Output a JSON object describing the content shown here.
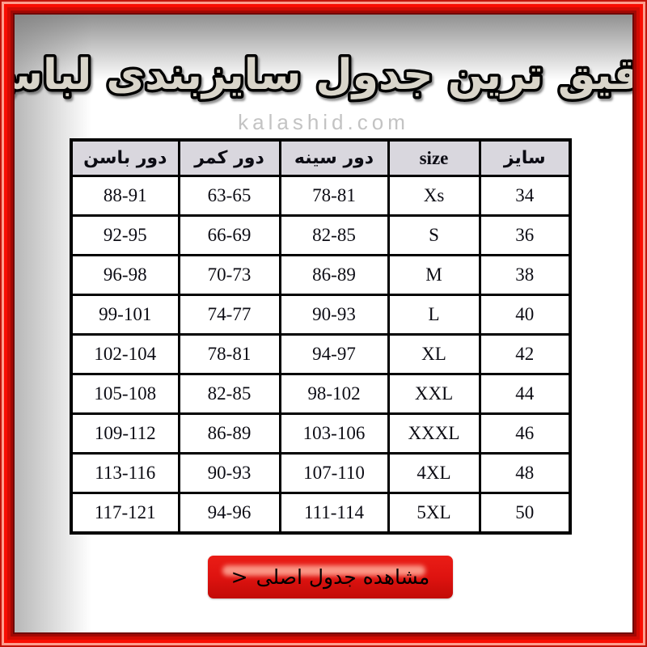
{
  "title": {
    "text": "دقیق ترین جدول سایزبندی لباس"
  },
  "watermark": {
    "text": "kalashid.com"
  },
  "size_table": {
    "headers": [
      "دور باسن",
      "دور کمر",
      "دور سینه",
      "size",
      "سایز"
    ],
    "rows": [
      [
        "88-91",
        "63-65",
        "78-81",
        "Xs",
        "34"
      ],
      [
        "92-95",
        "66-69",
        "82-85",
        "S",
        "36"
      ],
      [
        "96-98",
        "70-73",
        "86-89",
        "M",
        "38"
      ],
      [
        "99-101",
        "74-77",
        "90-93",
        "L",
        "40"
      ],
      [
        "102-104",
        "78-81",
        "94-97",
        "XL",
        "42"
      ],
      [
        "105-108",
        "82-85",
        "98-102",
        "XXL",
        "44"
      ],
      [
        "109-112",
        "86-89",
        "103-106",
        "XXXL",
        "46"
      ],
      [
        "113-116",
        "90-93",
        "107-110",
        "4XL",
        "48"
      ],
      [
        "117-121",
        "94-96",
        "111-114",
        "5XL",
        "50"
      ]
    ]
  },
  "cta_button": {
    "label": "مشاهده جدول اصلی",
    "arrow": ">"
  },
  "colors": {
    "frame_bright_red": "#f90d02",
    "frame_dark_red": "#700502",
    "frame_highlight": "#ff9d8d",
    "header_bg": "#d9d7de",
    "table_border": "#000000",
    "button_red": "#de1310",
    "button_gloss": "#ffab99",
    "title_fill": "#d9d5ca",
    "title_outline": "#000000",
    "watermark_gray": "#c3c3c3"
  }
}
